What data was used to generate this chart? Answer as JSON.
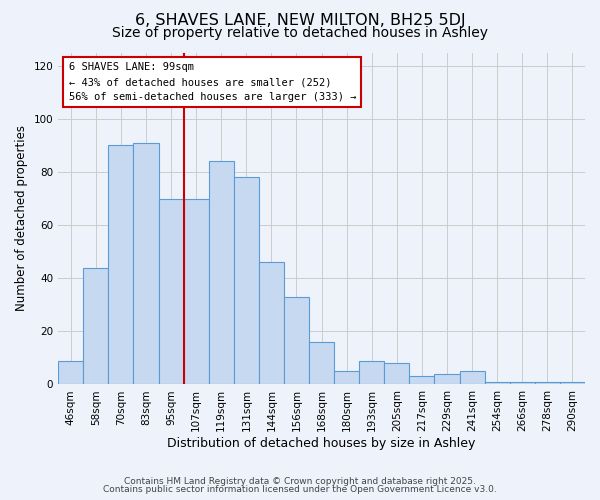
{
  "title": "6, SHAVES LANE, NEW MILTON, BH25 5DJ",
  "subtitle": "Size of property relative to detached houses in Ashley",
  "xlabel": "Distribution of detached houses by size in Ashley",
  "ylabel": "Number of detached properties",
  "bar_labels": [
    "46sqm",
    "58sqm",
    "70sqm",
    "83sqm",
    "95sqm",
    "107sqm",
    "119sqm",
    "131sqm",
    "144sqm",
    "156sqm",
    "168sqm",
    "180sqm",
    "193sqm",
    "205sqm",
    "217sqm",
    "229sqm",
    "241sqm",
    "254sqm",
    "266sqm",
    "278sqm",
    "290sqm"
  ],
  "bar_values": [
    9,
    44,
    90,
    91,
    70,
    70,
    84,
    78,
    46,
    33,
    16,
    5,
    9,
    8,
    3,
    4,
    5,
    1,
    1,
    1,
    1
  ],
  "bar_color": "#c6d9f1",
  "bar_edge_color": "#5b9bd5",
  "bar_edge_width": 0.8,
  "vline_x": 4.5,
  "vline_color": "#cc0000",
  "annotation_line1": "6 SHAVES LANE: 99sqm",
  "annotation_line2": "← 43% of detached houses are smaller (252)",
  "annotation_line3": "56% of semi-detached houses are larger (333) →",
  "annotation_box_facecolor": "white",
  "annotation_box_edgecolor": "#cc0000",
  "ylim": [
    0,
    125
  ],
  "yticks": [
    0,
    20,
    40,
    60,
    80,
    100,
    120
  ],
  "grid_color": "#cccccc",
  "bg_color": "#eef2fb",
  "footer_line1": "Contains HM Land Registry data © Crown copyright and database right 2025.",
  "footer_line2": "Contains public sector information licensed under the Open Government Licence v3.0.",
  "title_fontsize": 11.5,
  "subtitle_fontsize": 10,
  "xlabel_fontsize": 9,
  "ylabel_fontsize": 8.5,
  "tick_fontsize": 7.5,
  "annot_fontsize": 7.5,
  "footer_fontsize": 6.5
}
